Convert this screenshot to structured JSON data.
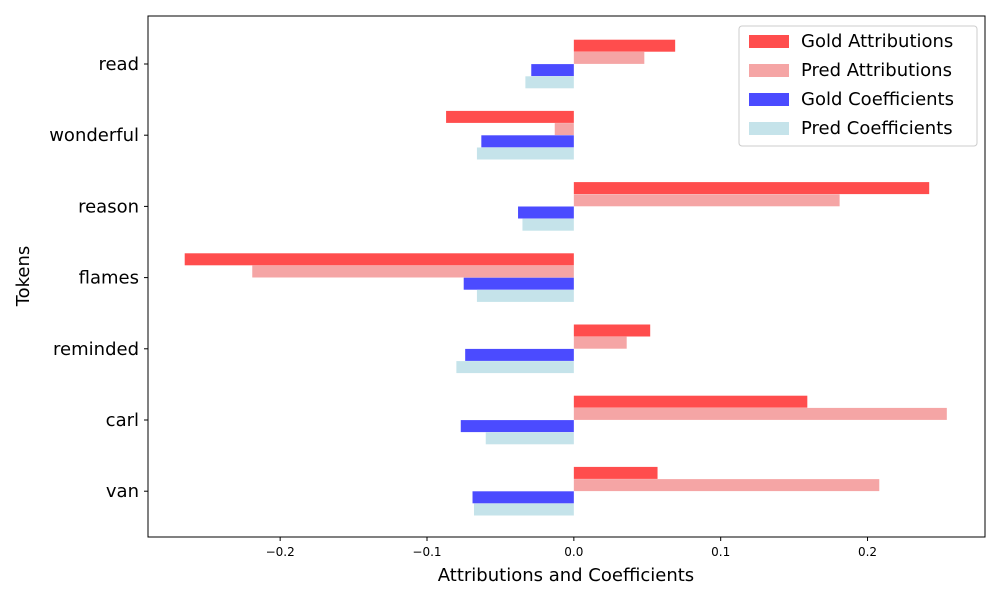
{
  "chart_data": {
    "type": "bar",
    "orientation": "horizontal",
    "title": "",
    "xlabel": "Attributions and Coefficients",
    "ylabel": "Tokens",
    "xlim": [
      -0.29,
      0.28
    ],
    "xticks": [
      -0.2,
      -0.1,
      0.0,
      0.1,
      0.2
    ],
    "xtick_labels": [
      "−0.2",
      "−0.1",
      "0.0",
      "0.1",
      "0.2"
    ],
    "categories": [
      "read",
      "wonderful",
      "reason",
      "flames",
      "reminded",
      "carl",
      "van"
    ],
    "legend_position": "top-right",
    "grid": false,
    "series": [
      {
        "name": "Gold Attributions",
        "color": "#ff4d4d",
        "values": [
          0.069,
          -0.087,
          0.242,
          -0.265,
          0.052,
          0.159,
          0.057
        ]
      },
      {
        "name": "Pred Attributions",
        "color": "#f5a5a5",
        "values": [
          0.048,
          -0.013,
          0.181,
          -0.219,
          0.036,
          0.254,
          0.208
        ]
      },
      {
        "name": "Gold Coefficients",
        "color": "#4b4bff",
        "values": [
          -0.029,
          -0.063,
          -0.038,
          -0.075,
          -0.074,
          -0.077,
          -0.069
        ]
      },
      {
        "name": "Pred Coefficients",
        "color": "#c5e3ea",
        "values": [
          -0.033,
          -0.066,
          -0.035,
          -0.066,
          -0.08,
          -0.06,
          -0.068
        ]
      }
    ]
  }
}
